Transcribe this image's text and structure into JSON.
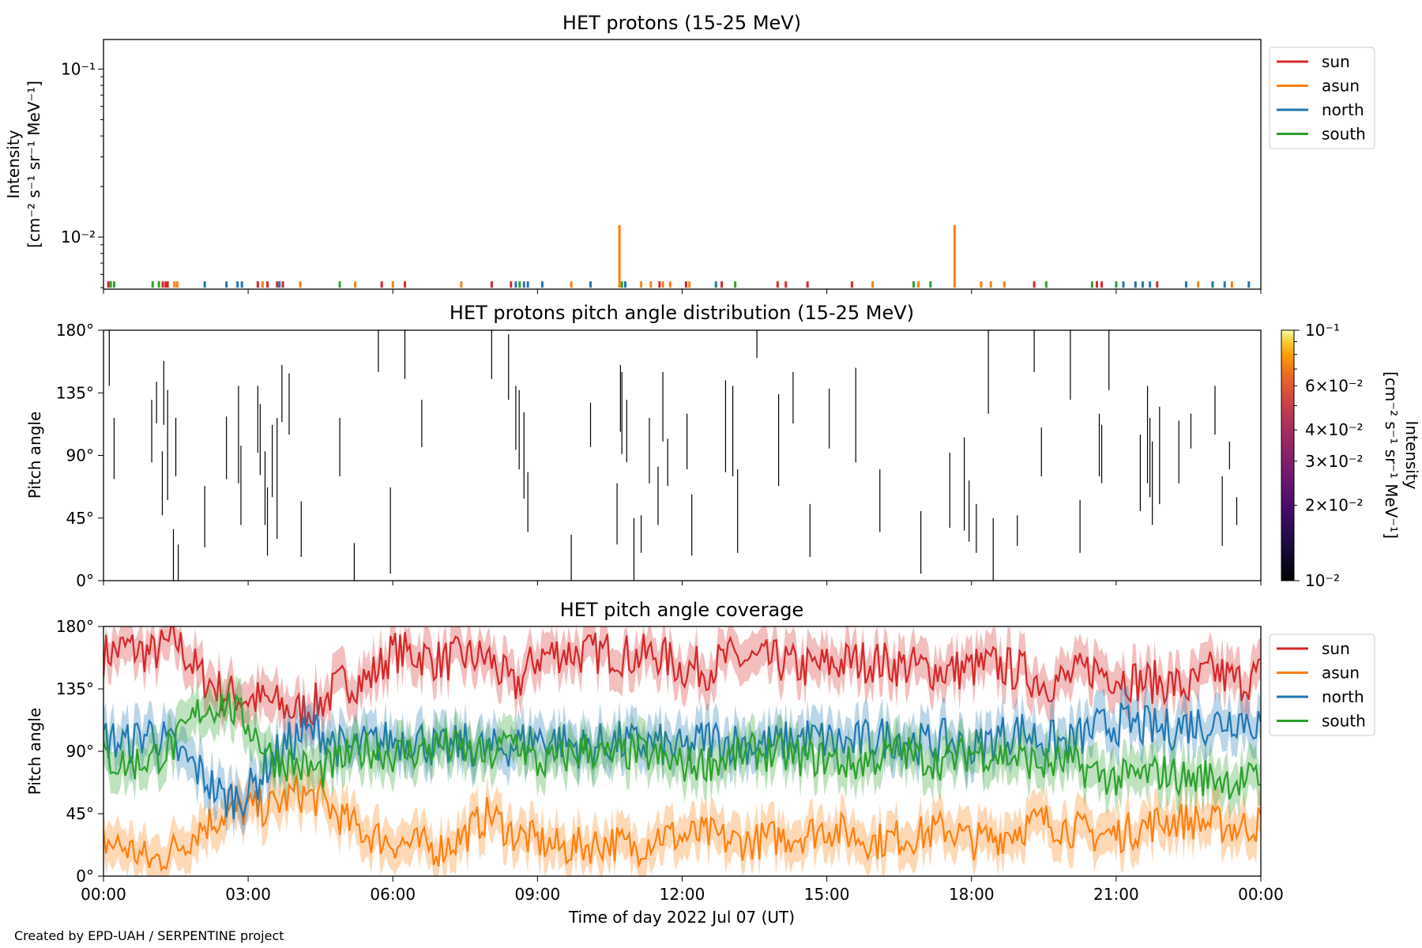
{
  "credit": "Created by EPD-UAH / SERPENTINE project",
  "colors": {
    "sun": "#d62728",
    "asun": "#ff7f0e",
    "north": "#1f77b4",
    "south": "#2ca02c"
  },
  "chart_data": [
    {
      "type": "line",
      "title": "HET protons (15-25 MeV)",
      "ylabel": [
        "Intensity",
        "[cm⁻² s⁻¹ sr⁻¹ MeV⁻¹]"
      ],
      "yscale": "log",
      "ylim": [
        0.0049,
        0.15
      ],
      "xlim": [
        0,
        24
      ],
      "yticks": [
        {
          "value": 0.01,
          "label": "10⁻²"
        },
        {
          "value": 0.1,
          "label": "10⁻¹"
        }
      ],
      "legend": {
        "placement": "outside-right",
        "entries": [
          "sun",
          "asun",
          "north",
          "south"
        ]
      },
      "baseline": 0.005,
      "series": [
        {
          "name": "sun",
          "color": "#d62728",
          "x": [
            0.1,
            1.23,
            1.29,
            1.33,
            3.2,
            3.4,
            3.6,
            3.72,
            5.77,
            6.25,
            8.05,
            8.45,
            11.53,
            12.08,
            12.82,
            13.98,
            14.15,
            14.6,
            15.52,
            19.3,
            20.6,
            20.7,
            21.85
          ]
        },
        {
          "name": "asun",
          "color": "#ff7f0e",
          "x": [
            1.47,
            1.53,
            3.3,
            4.08,
            5.22,
            6.0,
            7.42,
            9.7,
            10.7,
            11.15,
            11.35,
            11.6,
            11.75,
            12.15,
            15.95,
            16.9,
            17.65,
            18.2,
            18.4,
            18.68,
            21.4,
            22.7,
            23.4
          ],
          "y": [
            null,
            null,
            null,
            null,
            null,
            null,
            null,
            null,
            0.0118,
            null,
            null,
            null,
            null,
            null,
            null,
            null,
            0.0118,
            null,
            null,
            null,
            null,
            null,
            null
          ]
        },
        {
          "name": "north",
          "color": "#1f77b4",
          "x": [
            2.1,
            2.55,
            2.78,
            2.87,
            3.65,
            8.55,
            8.72,
            8.8,
            9.1,
            10.1,
            10.82,
            12.7,
            21.15,
            21.4,
            21.55,
            21.7,
            22.45,
            23.0,
            23.25,
            23.75
          ]
        },
        {
          "name": "south",
          "color": "#2ca02c",
          "x": [
            0.15,
            0.22,
            1.02,
            1.15,
            4.9,
            8.63,
            10.75,
            13.1,
            16.8,
            17.15,
            19.55,
            20.5,
            21.0
          ]
        }
      ]
    },
    {
      "type": "heatmap",
      "title": "HET protons pitch angle distribution (15-25 MeV)",
      "ylabel": "Pitch angle",
      "xlim": [
        0,
        24
      ],
      "ylim": [
        0,
        180
      ],
      "yticks": [
        "0°",
        "45°",
        "90°",
        "135°",
        "180°"
      ],
      "colorbar": {
        "label": [
          "Intensity",
          "[cm⁻² s⁻¹ sr⁻¹ MeV⁻¹]"
        ],
        "scale": "log",
        "range": [
          0.01,
          0.1
        ],
        "colormap": "inferno",
        "ticks": [
          {
            "value": 0.01,
            "label": "10⁻²",
            "major": true
          },
          {
            "value": 0.02,
            "label": "2×10⁻²"
          },
          {
            "value": 0.03,
            "label": "3×10⁻²"
          },
          {
            "value": 0.04,
            "label": "4×10⁻²"
          },
          {
            "value": 0.06,
            "label": "6×10⁻²"
          },
          {
            "value": 0.1,
            "label": "10⁻¹",
            "major": true
          }
        ]
      },
      "segments": [
        [
          0.12,
          140,
          180
        ],
        [
          0.22,
          73,
          117
        ],
        [
          1.0,
          85,
          130
        ],
        [
          1.1,
          113,
          143
        ],
        [
          1.22,
          47,
          93
        ],
        [
          1.25,
          112,
          158
        ],
        [
          1.33,
          58,
          137
        ],
        [
          1.45,
          0,
          37
        ],
        [
          1.5,
          75,
          117
        ],
        [
          1.55,
          0,
          26
        ],
        [
          2.1,
          24,
          68
        ],
        [
          2.55,
          73,
          118
        ],
        [
          2.8,
          70,
          140
        ],
        [
          2.85,
          40,
          97
        ],
        [
          3.2,
          92,
          140
        ],
        [
          3.25,
          76,
          127
        ],
        [
          3.35,
          40,
          93
        ],
        [
          3.4,
          18,
          67
        ],
        [
          3.5,
          60,
          112
        ],
        [
          3.6,
          30,
          117
        ],
        [
          3.7,
          114,
          155
        ],
        [
          3.85,
          105,
          149
        ],
        [
          4.1,
          17,
          57
        ],
        [
          4.9,
          75,
          117
        ],
        [
          5.2,
          0,
          27
        ],
        [
          5.7,
          150,
          180
        ],
        [
          5.95,
          5,
          67
        ],
        [
          6.25,
          145,
          180
        ],
        [
          6.6,
          96,
          130
        ],
        [
          8.05,
          145,
          180
        ],
        [
          8.4,
          130,
          177
        ],
        [
          8.55,
          94,
          140
        ],
        [
          8.62,
          80,
          137
        ],
        [
          8.72,
          59,
          121
        ],
        [
          8.8,
          35,
          78
        ],
        [
          9.7,
          0,
          33
        ],
        [
          10.1,
          96,
          128
        ],
        [
          10.65,
          26,
          70
        ],
        [
          10.72,
          107,
          155
        ],
        [
          10.75,
          91,
          150
        ],
        [
          10.85,
          85,
          130
        ],
        [
          11.0,
          0,
          45
        ],
        [
          11.15,
          20,
          47
        ],
        [
          11.32,
          70,
          117
        ],
        [
          11.5,
          40,
          82
        ],
        [
          11.6,
          100,
          150
        ],
        [
          11.7,
          68,
          102
        ],
        [
          12.1,
          80,
          120
        ],
        [
          12.2,
          18,
          62
        ],
        [
          12.9,
          78,
          144
        ],
        [
          13.05,
          75,
          140
        ],
        [
          13.15,
          20,
          80
        ],
        [
          13.55,
          160,
          180
        ],
        [
          14.0,
          68,
          134
        ],
        [
          14.3,
          113,
          150
        ],
        [
          14.65,
          17,
          55
        ],
        [
          15.05,
          95,
          138
        ],
        [
          15.6,
          85,
          153
        ],
        [
          16.1,
          35,
          80
        ],
        [
          16.95,
          5,
          50
        ],
        [
          17.55,
          38,
          92
        ],
        [
          17.85,
          36,
          103
        ],
        [
          17.95,
          28,
          72
        ],
        [
          18.1,
          20,
          55
        ],
        [
          18.35,
          120,
          180
        ],
        [
          18.45,
          0,
          45
        ],
        [
          18.95,
          25,
          47
        ],
        [
          19.3,
          150,
          180
        ],
        [
          19.45,
          75,
          110
        ],
        [
          20.05,
          130,
          180
        ],
        [
          20.25,
          20,
          58
        ],
        [
          20.65,
          75,
          120
        ],
        [
          20.7,
          70,
          112
        ],
        [
          20.85,
          137,
          180
        ],
        [
          21.5,
          50,
          105
        ],
        [
          21.65,
          70,
          140
        ],
        [
          21.7,
          60,
          117
        ],
        [
          21.75,
          40,
          100
        ],
        [
          21.9,
          55,
          125
        ],
        [
          22.3,
          70,
          115
        ],
        [
          22.55,
          95,
          120
        ],
        [
          23.05,
          105,
          140
        ],
        [
          23.2,
          25,
          75
        ],
        [
          23.35,
          80,
          100
        ],
        [
          23.5,
          40,
          60
        ]
      ]
    },
    {
      "type": "line",
      "title": "HET pitch angle coverage",
      "xlabel": "Time of day 2022 Jul 07 (UT)",
      "ylabel": "Pitch angle",
      "xlim": [
        0,
        24
      ],
      "ylim": [
        0,
        180
      ],
      "xticks": [
        "00:00",
        "03:00",
        "06:00",
        "09:00",
        "12:00",
        "15:00",
        "18:00",
        "21:00",
        "00:00"
      ],
      "yticks": [
        "0°",
        "45°",
        "90°",
        "135°",
        "180°"
      ],
      "legend": {
        "placement": "outside-right",
        "entries": [
          "sun",
          "asun",
          "north",
          "south"
        ]
      },
      "band_halfwidth": 15,
      "series": [
        {
          "name": "sun",
          "color": "#d62728",
          "x_step": 0.5,
          "y": [
            160,
            165,
            160,
            170,
            145,
            132,
            128,
            125,
            118,
            125,
            140,
            142,
            162,
            160,
            155,
            158,
            157,
            135,
            158,
            162,
            160,
            162,
            158,
            160,
            150,
            150,
            157,
            155,
            155,
            150,
            152,
            155,
            155,
            152,
            150,
            148,
            150,
            152,
            148,
            140,
            142,
            150,
            145,
            140,
            140,
            135,
            148,
            140,
            145
          ]
        },
        {
          "name": "asun",
          "color": "#ff7f0e",
          "x_step": 0.5,
          "y": [
            25,
            20,
            10,
            20,
            35,
            45,
            48,
            50,
            60,
            55,
            40,
            30,
            25,
            22,
            20,
            30,
            45,
            30,
            25,
            20,
            22,
            25,
            20,
            30,
            28,
            30,
            25,
            25,
            28,
            30,
            35,
            30,
            25,
            28,
            30,
            35,
            25,
            28,
            35,
            40,
            35,
            30,
            30,
            35,
            40,
            40,
            38,
            35,
            38
          ]
        },
        {
          "name": "north",
          "color": "#1f77b4",
          "x_step": 0.5,
          "y": [
            100,
            95,
            105,
            90,
            75,
            55,
            60,
            85,
            100,
            105,
            90,
            95,
            98,
            100,
            90,
            95,
            90,
            95,
            100,
            97,
            92,
            97,
            95,
            95,
            90,
            100,
            97,
            95,
            95,
            100,
            98,
            95,
            100,
            100,
            95,
            98,
            90,
            100,
            105,
            98,
            95,
            105,
            110,
            108,
            105,
            110,
            110,
            115,
            110
          ]
        },
        {
          "name": "south",
          "color": "#2ca02c",
          "x_step": 0.5,
          "y": [
            85,
            80,
            85,
            95,
            120,
            125,
            110,
            85,
            80,
            75,
            85,
            92,
            88,
            90,
            95,
            90,
            85,
            100,
            80,
            85,
            92,
            85,
            90,
            85,
            80,
            82,
            85,
            90,
            88,
            85,
            85,
            80,
            85,
            90,
            85,
            82,
            90,
            88,
            85,
            80,
            82,
            75,
            70,
            72,
            75,
            70,
            72,
            68,
            70
          ]
        }
      ]
    }
  ]
}
